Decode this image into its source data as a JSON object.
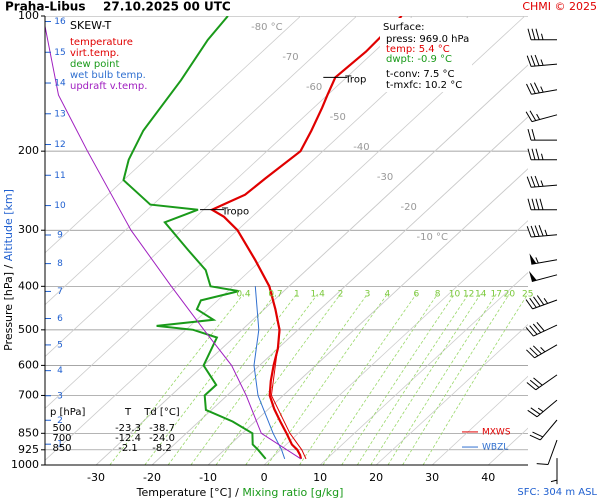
{
  "chart_data": {
    "type": "skew-t",
    "title": "Praha-Libus",
    "subtitle": "27.10.2025 00 UTC",
    "credit": "CHMI © 2025",
    "diagram_label": "SKEW-T",
    "ylim": [
      1000,
      100
    ],
    "log_scale_y": true,
    "yticks": [
      100,
      200,
      300,
      400,
      500,
      600,
      700,
      850,
      925,
      1000
    ],
    "xlim": [
      -39.1,
      47.1
    ],
    "xticks": [
      -30,
      -20,
      -10,
      0,
      10,
      20,
      30,
      40
    ],
    "altitude_ticks": [
      1,
      2,
      3,
      4,
      5,
      6,
      7,
      8,
      9,
      10,
      11,
      12,
      13,
      14,
      15,
      16
    ],
    "isotherm_labels": [
      {
        "value": -80,
        "label": "-80 °C"
      },
      -70,
      -60,
      -50,
      -40,
      -30,
      -20,
      {
        "value": -10,
        "label": "-10 °C"
      }
    ],
    "mixing_ratio_labels": [
      0.4,
      0.7,
      1,
      1.4,
      2,
      3,
      4,
      6,
      8,
      10,
      12,
      14,
      17,
      20,
      25
    ],
    "xlabel": {
      "primary": "Temperature [°C]",
      "separator": "/",
      "secondary": "Mixing ratio [g/kg]"
    },
    "ylabel": {
      "primary": "Pressure [hPa]",
      "separator": "/",
      "secondary": "Altitude [km]"
    },
    "series": [
      {
        "name": "temperature",
        "color": "#e00000",
        "pressure": [
          969,
          950,
          925,
          900,
          850,
          800,
          750,
          700,
          650,
          600,
          550,
          500,
          450,
          400,
          350,
          300,
          280,
          270,
          260,
          250,
          230,
          200,
          180,
          160,
          150,
          137,
          120,
          100
        ],
        "values": [
          5.4,
          4.5,
          3.0,
          1.0,
          -2.1,
          -5.5,
          -9,
          -12.4,
          -15,
          -17.5,
          -20,
          -23.3,
          -28,
          -33.5,
          -41,
          -50,
          -55,
          -58.5,
          -57,
          -55.5,
          -55,
          -54,
          -56,
          -58.5,
          -60,
          -62,
          -61.5,
          -62
        ]
      },
      {
        "name": "virt.temp.",
        "color": "#e00000",
        "pressure": [
          969,
          925,
          850,
          700,
          500,
          400,
          300
        ],
        "values": [
          6.3,
          3.8,
          -1.5,
          -12.1,
          -23.2,
          -33.4,
          -50
        ]
      },
      {
        "name": "dew point",
        "color": "#1a9a1a",
        "pressure": [
          969,
          925,
          900,
          850,
          800,
          754,
          700,
          663,
          600,
          520,
          500,
          490,
          475,
          450,
          430,
          410,
          400,
          368,
          332,
          288,
          270,
          263,
          232,
          209,
          180,
          139,
          113,
          100
        ],
        "values": [
          -0.9,
          -4,
          -6,
          -8.2,
          -14,
          -21,
          -24.0,
          -24,
          -30,
          -33,
          -38.7,
          -46,
          -37,
          -42,
          -43,
          -38,
          -44,
          -48,
          -55,
          -64.5,
          -61,
          -70.5,
          -80,
          -83,
          -86,
          -89,
          -92,
          -93
        ]
      },
      {
        "name": "wet bulb temp.",
        "color": "#3070d0",
        "pressure": [
          969,
          925,
          850,
          700,
          600,
          500,
          400
        ],
        "values": [
          2.5,
          0.2,
          -4.5,
          -14.5,
          -21,
          -27,
          -36
        ]
      },
      {
        "name": "updraft v.temp.",
        "color": "#a020c0",
        "pressure": [
          969,
          850,
          700,
          600,
          500,
          400,
          300,
          200,
          150,
          100
        ],
        "values": [
          5.4,
          -6.6,
          -16.6,
          -25,
          -36.8,
          -51,
          -69,
          -92,
          -108,
          -126
        ]
      }
    ],
    "tropopause": [
      {
        "label": "Tropo",
        "pressure": 270,
        "temperature": -58.5
      },
      {
        "label": "Trop",
        "pressure": 137,
        "temperature": -62
      }
    ],
    "levels": [
      {
        "label": "MXWS",
        "pressure": 844,
        "color": "#e00000"
      },
      {
        "label": "WBZL",
        "pressure": 912,
        "color": "#3070d0"
      }
    ],
    "wind": {
      "pressure": [
        113,
        128,
        146,
        166,
        189,
        209,
        238,
        270,
        307,
        349,
        377,
        429,
        488,
        540,
        630,
        717,
        794,
        880,
        965
      ],
      "direction": [
        270,
        265,
        260,
        255,
        270,
        270,
        265,
        270,
        265,
        260,
        255,
        250,
        245,
        240,
        235,
        230,
        220,
        200,
        180
      ],
      "speed": [
        35,
        35,
        35,
        25,
        20,
        35,
        35,
        40,
        45,
        55,
        50,
        45,
        40,
        35,
        30,
        25,
        20,
        10,
        5
      ]
    },
    "surface": {
      "title": "Surface:",
      "press": "press: 969.0 hPa",
      "temp": "temp: 5.4 °C",
      "dwpt": "dwpt: -0.9 °C",
      "tconv": "t-conv: 7.5 °C",
      "tmxfc": "t-mxfc: 10.2 °C"
    },
    "table": {
      "header": [
        "p [hPa]",
        "T",
        "Td [°C]"
      ],
      "rows": [
        [
          "500",
          "-23.3",
          "-38.7"
        ],
        [
          "700",
          "-12.4",
          "-24.0"
        ],
        [
          "850",
          "-2.1",
          "-8.2"
        ]
      ]
    },
    "station_note": "SFC: 304 m ASL"
  }
}
